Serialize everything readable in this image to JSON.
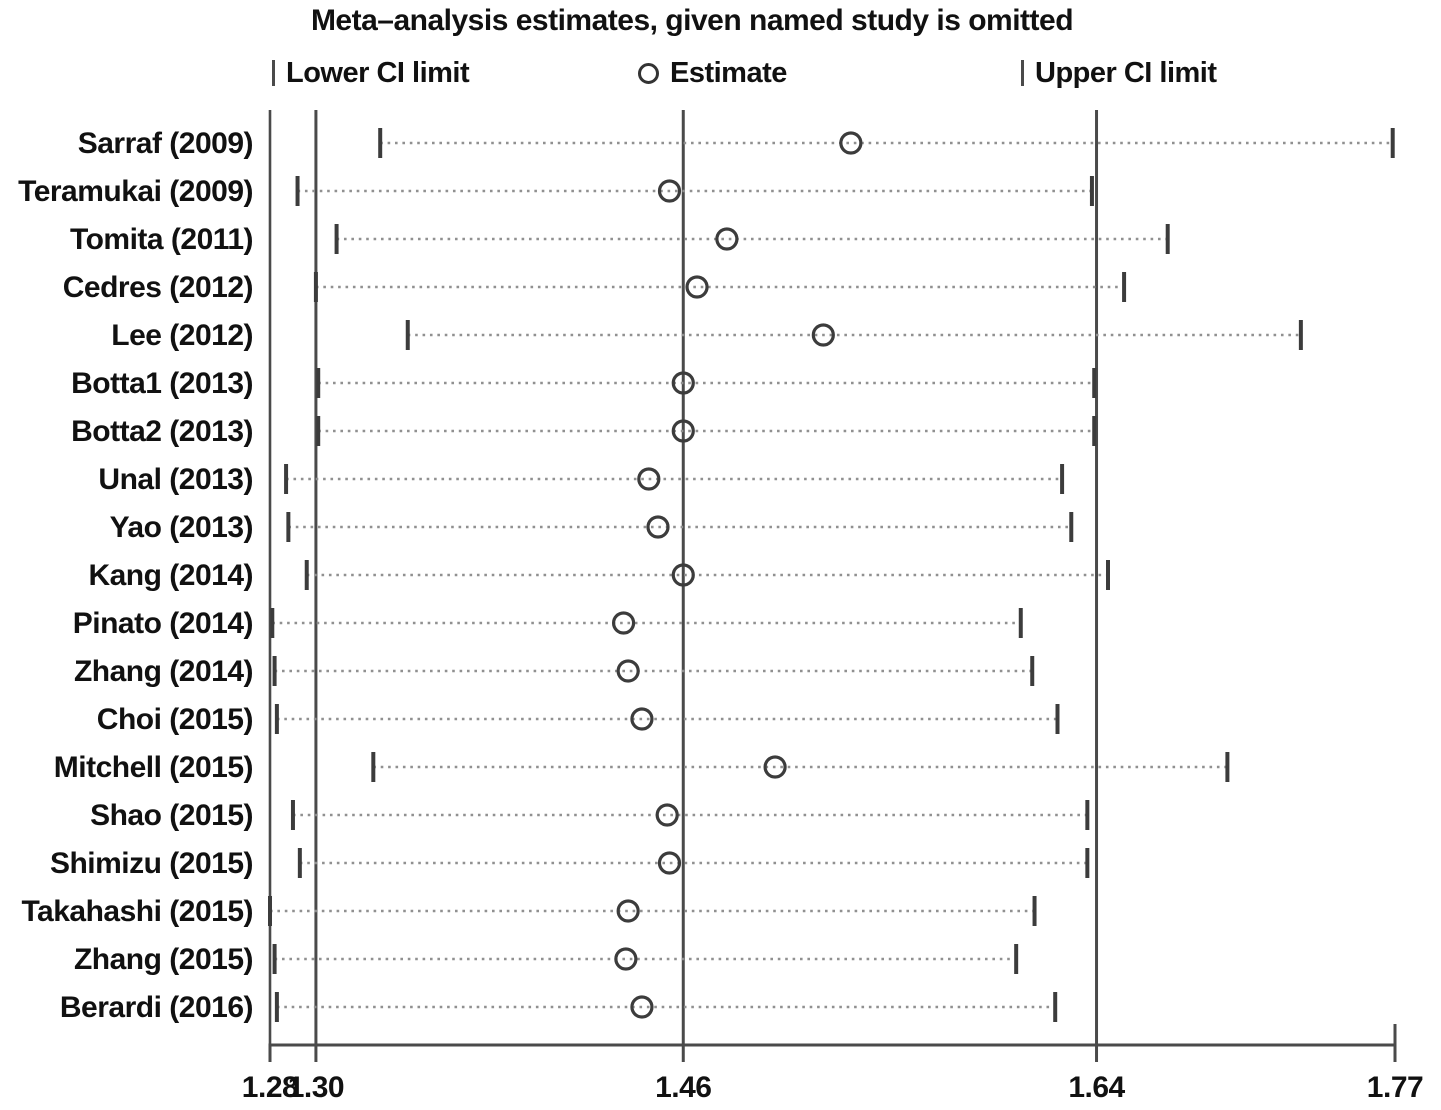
{
  "figure": {
    "title": "Meta–analysis estimates, given named study is omitted",
    "legend": {
      "lower": "Lower CI limit",
      "estimate": "Estimate",
      "upper": "Upper CI limit"
    }
  },
  "colors": {
    "text": "#111111",
    "frame": "#4a4a4a",
    "ci_tick": "#3c3c3c",
    "dots": "#909090",
    "marker": "#3c3c3c",
    "background": "#ffffff"
  },
  "chart_data": {
    "type": "scatter",
    "subtype": "leave-one-out-forest-plot",
    "title": "Meta–analysis estimates, given named study is omitted",
    "xlabel": "",
    "ylabel": "",
    "grid": false,
    "legend_position": "top",
    "legend_entries": [
      "Lower CI limit",
      "Estimate",
      "Upper CI limit"
    ],
    "xlim": [
      1.28,
      1.77
    ],
    "x_tick_labels": [
      "1.28",
      "1.30",
      "1.46",
      "1.64",
      "1.77"
    ],
    "x_tick_values": [
      1.28,
      1.3,
      1.46,
      1.64,
      1.77
    ],
    "ref_line_values": [
      1.3,
      1.46,
      1.64
    ],
    "studies": [
      {
        "label": "Sarraf (2009)",
        "lower": 1.328,
        "estimate": 1.533,
        "upper": 1.769
      },
      {
        "label": "Teramukai (2009)",
        "lower": 1.292,
        "estimate": 1.454,
        "upper": 1.638
      },
      {
        "label": "Tomita (2011)",
        "lower": 1.309,
        "estimate": 1.479,
        "upper": 1.671
      },
      {
        "label": "Cedres (2012)",
        "lower": 1.3,
        "estimate": 1.466,
        "upper": 1.652
      },
      {
        "label": "Lee (2012)",
        "lower": 1.34,
        "estimate": 1.521,
        "upper": 1.729
      },
      {
        "label": "Botta1 (2013)",
        "lower": 1.301,
        "estimate": 1.46,
        "upper": 1.639
      },
      {
        "label": "Botta2 (2013)",
        "lower": 1.301,
        "estimate": 1.46,
        "upper": 1.639
      },
      {
        "label": "Unal (2013)",
        "lower": 1.287,
        "estimate": 1.445,
        "upper": 1.625
      },
      {
        "label": "Yao (2013)",
        "lower": 1.288,
        "estimate": 1.449,
        "upper": 1.629
      },
      {
        "label": "Kang (2014)",
        "lower": 1.296,
        "estimate": 1.46,
        "upper": 1.645
      },
      {
        "label": "Pinato (2014)",
        "lower": 1.281,
        "estimate": 1.434,
        "upper": 1.607
      },
      {
        "label": "Zhang (2014)",
        "lower": 1.282,
        "estimate": 1.436,
        "upper": 1.612
      },
      {
        "label": "Choi (2015)",
        "lower": 1.283,
        "estimate": 1.442,
        "upper": 1.623
      },
      {
        "label": "Mitchell (2015)",
        "lower": 1.325,
        "estimate": 1.5,
        "upper": 1.697
      },
      {
        "label": "Shao (2015)",
        "lower": 1.29,
        "estimate": 1.453,
        "upper": 1.636
      },
      {
        "label": "Shimizu (2015)",
        "lower": 1.293,
        "estimate": 1.454,
        "upper": 1.636
      },
      {
        "label": "Takahashi (2015)",
        "lower": 1.28,
        "estimate": 1.436,
        "upper": 1.613
      },
      {
        "label": "Zhang (2015)",
        "lower": 1.282,
        "estimate": 1.435,
        "upper": 1.605
      },
      {
        "label": "Berardi (2016)",
        "lower": 1.283,
        "estimate": 1.442,
        "upper": 1.622
      }
    ]
  }
}
